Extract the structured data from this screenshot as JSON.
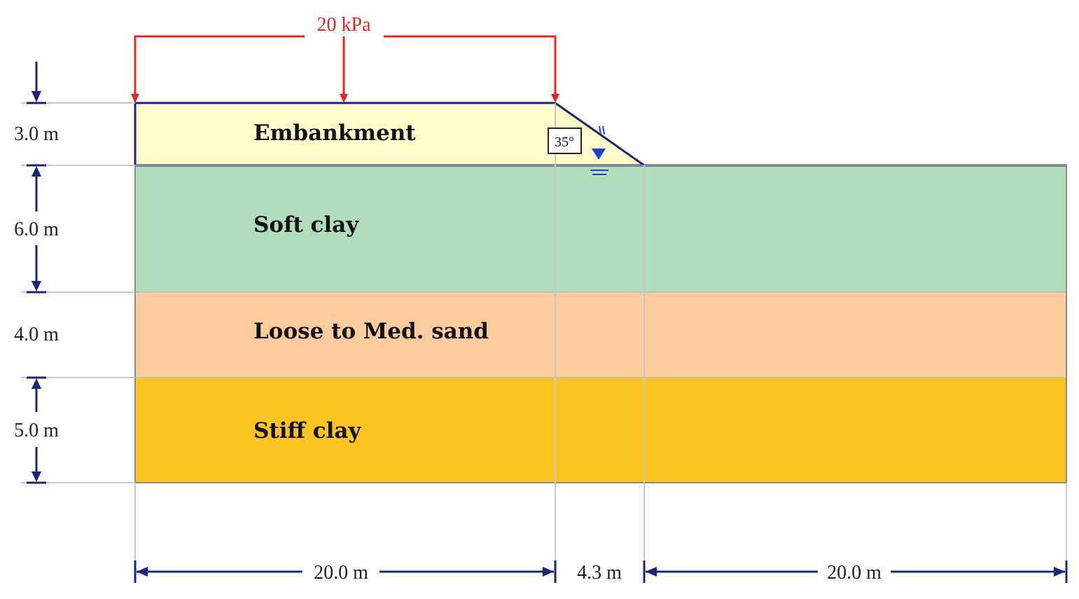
{
  "load": {
    "label": "20 kPa"
  },
  "layers": [
    {
      "name": "Embankment",
      "thickness": "3.0 m",
      "color": "#fefcc8"
    },
    {
      "name": "Soft clay",
      "thickness": "6.0 m",
      "color": "#b2ddbd"
    },
    {
      "name": "Loose to Med. sand",
      "thickness": "4.0 m",
      "color": "#fccc9e"
    },
    {
      "name": "Stiff clay",
      "thickness": "5.0 m",
      "color": "#fcc41e"
    }
  ],
  "slope": {
    "angle": "35°"
  },
  "horizontal_dims": [
    "20.0 m",
    "4.3 m",
    "20.0 m"
  ],
  "colors": {
    "outline": "#1a237e",
    "load": "#e8251f",
    "water_table": "#1e3fd8",
    "guide": "#c8c8c8"
  }
}
